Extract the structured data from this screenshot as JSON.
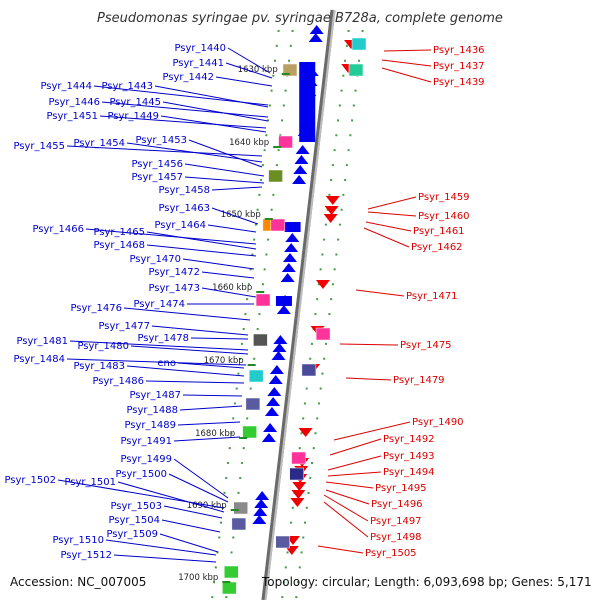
{
  "title": "Pseudomonas syringae pv. syringae B728a, complete genome",
  "footer": {
    "accession": "Accession: NC_007005",
    "topology": "Topology: circular; Length: 6,093,698 bp; Genes: 5,171"
  },
  "colors": {
    "backbone": "#9a9a9a",
    "forward_gene": "#0000ee",
    "reverse_gene": "#ee0000",
    "tick": "#228b22",
    "left_label": "#0000cc",
    "right_label": "#dd0000"
  },
  "scale_ticks": [
    {
      "label": "1630 kbp"
    },
    {
      "label": "1640 kbp"
    },
    {
      "label": "1650 kbp"
    },
    {
      "label": "1660 kbp"
    },
    {
      "label": "1670 kbp"
    },
    {
      "label": "1680 kbp"
    },
    {
      "label": "1690 kbp"
    },
    {
      "label": "1700 kbp"
    }
  ],
  "left_labels": [
    "Psyr_1440",
    "Psyr_1441",
    "Psyr_1442",
    "Psyr_1444",
    "Psyr_1443",
    "Psyr_1446",
    "Psyr_1445",
    "Psyr_1451",
    "Psyr_1449",
    "Psyr_1455",
    "Psyr_1454",
    "Psyr_1453",
    "Psyr_1456",
    "Psyr_1457",
    "Psyr_1458",
    "Psyr_1463",
    "Psyr_1464",
    "Psyr_1466",
    "Psyr_1465",
    "Psyr_1468",
    "Psyr_1470",
    "Psyr_1472",
    "Psyr_1473",
    "Psyr_1474",
    "Psyr_1476",
    "Psyr_1477",
    "Psyr_1478",
    "Psyr_1481",
    "Psyr_1480",
    "Psyr_1484",
    "eno",
    "Psyr_1483",
    "Psyr_1486",
    "Psyr_1487",
    "Psyr_1488",
    "Psyr_1489",
    "Psyr_1491",
    "Psyr_1499",
    "Psyr_1500",
    "Psyr_1502",
    "Psyr_1501",
    "Psyr_1503",
    "Psyr_1504",
    "Psyr_1509",
    "Psyr_1510",
    "Psyr_1512"
  ],
  "right_labels": [
    "Psyr_1436",
    "Psyr_1437",
    "Psyr_1439",
    "Psyr_1459",
    "Psyr_1460",
    "Psyr_1461",
    "Psyr_1462",
    "Psyr_1471",
    "Psyr_1475",
    "Psyr_1479",
    "Psyr_1490",
    "Psyr_1492",
    "Psyr_1493",
    "Psyr_1494",
    "Psyr_1495",
    "Psyr_1496",
    "Psyr_1497",
    "Psyr_1498",
    "Psyr_1505"
  ]
}
